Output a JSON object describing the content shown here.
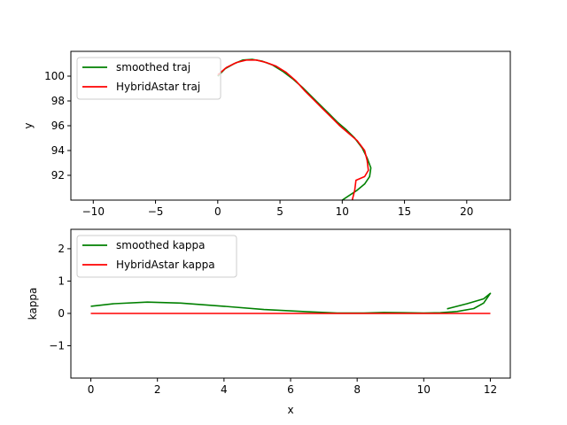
{
  "colors": {
    "smoothed": "#008000",
    "hybrid": "#ff0000",
    "frame": "#000000"
  },
  "chart_data": [
    {
      "type": "line",
      "xlabel": "x",
      "ylabel": "y",
      "xlim": [
        -11.8,
        23.5
      ],
      "ylim": [
        90.0,
        102.0
      ],
      "xticks": [
        -10,
        -5,
        0,
        5,
        10,
        15,
        20
      ],
      "yticks": [
        92,
        94,
        96,
        98,
        100
      ],
      "legend": [
        "smoothed traj",
        "HybridAstar traj"
      ],
      "legend_position": "top-left",
      "series": [
        {
          "name": "smoothed traj",
          "color": "#008000",
          "x": [
            0.0,
            0.6,
            1.3,
            2.0,
            2.8,
            3.6,
            4.4,
            5.2,
            6.0,
            6.8,
            7.5,
            8.2,
            8.9,
            9.6,
            10.3,
            11.0,
            11.6,
            12.0,
            12.3,
            12.2,
            11.8,
            11.2,
            10.6,
            10.0
          ],
          "y": [
            100.0,
            100.6,
            101.0,
            101.3,
            101.35,
            101.2,
            100.9,
            100.4,
            99.8,
            99.1,
            98.4,
            97.7,
            97.0,
            96.3,
            95.7,
            95.0,
            94.2,
            93.4,
            92.6,
            91.9,
            91.3,
            90.8,
            90.4,
            90.0
          ]
        },
        {
          "name": "HybridAstar traj",
          "color": "#ff0000",
          "x": [
            0.0,
            0.7,
            1.5,
            2.3,
            3.1,
            3.9,
            4.7,
            5.5,
            6.3,
            7.0,
            7.7,
            8.4,
            9.1,
            9.8,
            10.5,
            11.2,
            11.8,
            12.0,
            12.1,
            11.8,
            11.1,
            11.0,
            10.8
          ],
          "y": [
            100.1,
            100.7,
            101.1,
            101.3,
            101.3,
            101.1,
            100.8,
            100.3,
            99.6,
            98.8,
            98.1,
            97.4,
            96.7,
            96.0,
            95.4,
            94.8,
            94.0,
            93.2,
            92.4,
            91.9,
            91.6,
            90.8,
            90.0
          ]
        }
      ]
    },
    {
      "type": "line",
      "xlabel": "x",
      "ylabel": "kappa",
      "xlim": [
        -0.6,
        12.6
      ],
      "ylim": [
        -2.0,
        2.6
      ],
      "xticks": [
        0,
        2,
        4,
        6,
        8,
        10,
        12
      ],
      "yticks": [
        -1,
        0,
        1,
        2
      ],
      "legend": [
        "smoothed kappa",
        "HybridAstar kappa"
      ],
      "legend_position": "top-left",
      "series": [
        {
          "name": "smoothed kappa",
          "color": "#008000",
          "x": [
            0.0,
            0.7,
            1.7,
            2.7,
            4.0,
            5.2,
            6.5,
            7.4,
            8.2,
            8.8,
            9.4,
            10.0,
            10.5,
            11.0,
            11.5,
            11.8,
            12.0,
            11.8,
            11.3,
            10.7
          ],
          "y": [
            0.22,
            0.3,
            0.35,
            0.32,
            0.22,
            0.12,
            0.05,
            0.01,
            0.01,
            0.03,
            0.02,
            0.01,
            0.02,
            0.06,
            0.15,
            0.32,
            0.62,
            0.45,
            0.3,
            0.14
          ]
        },
        {
          "name": "HybridAstar kappa",
          "color": "#ff0000",
          "x": [
            0.0,
            12.0
          ],
          "y": [
            0.0,
            0.0
          ]
        }
      ]
    }
  ]
}
